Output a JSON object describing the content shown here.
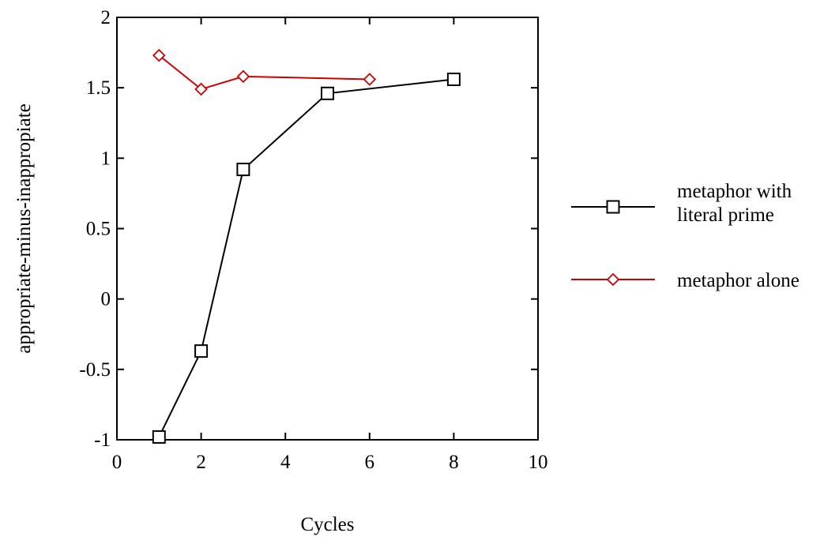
{
  "chart_data": {
    "type": "line",
    "title": "",
    "xlabel": "Cycles",
    "ylabel": "appropriate-minus-inappropiate",
    "xlim": [
      0,
      10
    ],
    "ylim": [
      -1,
      2
    ],
    "xticks": [
      0,
      2,
      4,
      6,
      8,
      10
    ],
    "yticks": [
      -1,
      -0.5,
      0,
      0.5,
      1,
      1.5,
      2
    ],
    "grid": false,
    "legend_position": "right",
    "series": [
      {
        "name": "metaphor with literal prime",
        "name_lines": [
          "metaphor with",
          "literal prime"
        ],
        "color": "#000000",
        "marker": "square",
        "x": [
          1,
          2,
          3,
          5,
          8
        ],
        "y": [
          -0.98,
          -0.37,
          0.92,
          1.46,
          1.56
        ]
      },
      {
        "name": "metaphor alone",
        "name_lines": [
          "metaphor alone"
        ],
        "color": "#cc0000",
        "marker": "diamond",
        "x": [
          1,
          2,
          3,
          6
        ],
        "y": [
          1.73,
          1.49,
          1.58,
          1.56
        ]
      }
    ]
  }
}
